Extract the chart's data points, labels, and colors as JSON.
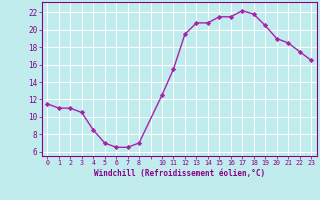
{
  "x": [
    0,
    1,
    2,
    3,
    4,
    5,
    6,
    7,
    8,
    10,
    11,
    12,
    13,
    14,
    15,
    16,
    17,
    18,
    19,
    20,
    21,
    22,
    23
  ],
  "y": [
    11.5,
    11.0,
    11.0,
    10.5,
    8.5,
    7.0,
    6.5,
    6.5,
    7.0,
    12.5,
    15.5,
    19.5,
    20.8,
    20.8,
    21.5,
    21.5,
    22.2,
    21.8,
    20.5,
    19.0,
    18.5,
    17.5,
    16.5
  ],
  "line_color": "#aa22aa",
  "marker_color": "#aa22aa",
  "bg_color": "#c0ecee",
  "grid_color": "#ffffff",
  "xlabel": "Windchill (Refroidissement éolien,°C)",
  "ylabel_ticks": [
    6,
    8,
    10,
    12,
    14,
    16,
    18,
    20,
    22
  ],
  "xlim": [
    -0.5,
    23.5
  ],
  "ylim": [
    5.5,
    23.2
  ],
  "xtick_labels": [
    "0",
    "1",
    "2",
    "3",
    "4",
    "5",
    "6",
    "7",
    "8",
    "",
    "10",
    "11",
    "12",
    "13",
    "14",
    "15",
    "16",
    "17",
    "18",
    "19",
    "20",
    "21",
    "22",
    "23"
  ],
  "xtick_positions": [
    0,
    1,
    2,
    3,
    4,
    5,
    6,
    7,
    8,
    9,
    10,
    11,
    12,
    13,
    14,
    15,
    16,
    17,
    18,
    19,
    20,
    21,
    22,
    23
  ],
  "title_color": "#880088",
  "axis_color": "#880088",
  "tick_color": "#880088"
}
